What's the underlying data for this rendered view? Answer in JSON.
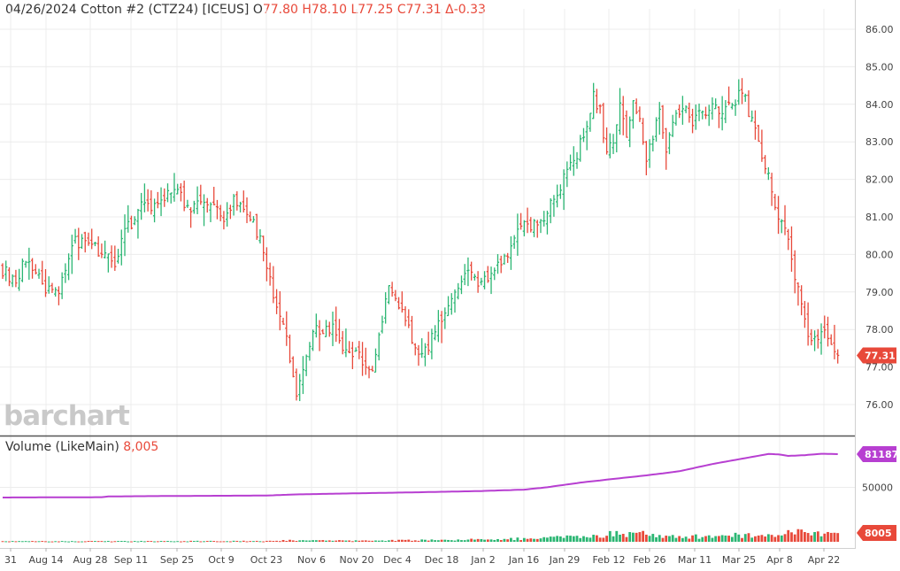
{
  "header": {
    "date": "04/26/2024",
    "symbol": "Cotton #2 (CTZ24) [ICEUS]",
    "o_label": "O",
    "open": "77.80",
    "high": "H78.10",
    "low": "L77.25",
    "close": "C77.31",
    "change": "Δ-0.33"
  },
  "logo_text": "barchart",
  "volume_header": {
    "label": "Volume  (LikeMain)",
    "value": "8,005"
  },
  "colors": {
    "up": "#2bb673",
    "down": "#e8493a",
    "open_interest": "#b73fd1",
    "price_badge": "#e8493a",
    "oi_badge": "#b73fd1",
    "volume_badge": "#e8493a"
  },
  "chart_data": [
    {
      "type": "ohlc",
      "name": "price",
      "y_axis_ticks": [
        "86.00",
        "85.00",
        "84.00",
        "83.00",
        "82.00",
        "81.00",
        "80.00",
        "79.00",
        "78.00",
        "77.00",
        "76.00"
      ],
      "ylim": [
        75.2,
        86.6
      ],
      "last_price_label": "77.31",
      "last_price": 77.31,
      "x_tick_labels": [
        "31",
        "Aug 14",
        "Aug 28",
        "Sep 11",
        "Sep 25",
        "Oct 9",
        "Oct 23",
        "Nov 6",
        "Nov 20",
        "Dec 4",
        "Dec 18",
        "Jan 2",
        "Jan 16",
        "Jan 29",
        "Feb 12",
        "Feb 26",
        "Mar 11",
        "Mar 25",
        "Apr 8",
        "Apr 22"
      ],
      "anchors": [
        [
          0,
          79.6
        ],
        [
          4,
          79.3
        ],
        [
          7,
          79.9
        ],
        [
          10,
          79.5
        ],
        [
          13,
          79.1
        ],
        [
          16,
          78.9
        ],
        [
          19,
          79.6
        ],
        [
          22,
          80.3
        ],
        [
          25,
          80.4
        ],
        [
          28,
          80.2
        ],
        [
          31,
          80.0
        ],
        [
          34,
          79.8
        ],
        [
          37,
          80.7
        ],
        [
          40,
          80.9
        ],
        [
          43,
          81.4
        ],
        [
          46,
          81.3
        ],
        [
          49,
          81.5
        ],
        [
          52,
          81.7
        ],
        [
          55,
          81.4
        ],
        [
          58,
          81.2
        ],
        [
          61,
          81.4
        ],
        [
          64,
          81.2
        ],
        [
          67,
          81.0
        ],
        [
          70,
          81.5
        ],
        [
          73,
          81.1
        ],
        [
          76,
          80.9
        ],
        [
          79,
          80.1
        ],
        [
          82,
          78.9
        ],
        [
          85,
          78.3
        ],
        [
          87,
          77.3
        ],
        [
          89,
          76.4
        ],
        [
          91,
          77.1
        ],
        [
          94,
          78.0
        ],
        [
          97,
          77.9
        ],
        [
          100,
          78.1
        ],
        [
          103,
          77.6
        ],
        [
          106,
          77.4
        ],
        [
          109,
          77.2
        ],
        [
          112,
          77.0
        ],
        [
          115,
          78.3
        ],
        [
          117,
          79.0
        ],
        [
          120,
          78.6
        ],
        [
          123,
          78.0
        ],
        [
          126,
          77.3
        ],
        [
          129,
          77.6
        ],
        [
          132,
          78.1
        ],
        [
          135,
          78.6
        ],
        [
          138,
          79.2
        ],
        [
          141,
          79.5
        ],
        [
          144,
          79.3
        ],
        [
          147,
          79.4
        ],
        [
          150,
          79.7
        ],
        [
          153,
          80.0
        ],
        [
          156,
          80.6
        ],
        [
          159,
          80.8
        ],
        [
          162,
          80.7
        ],
        [
          165,
          81.2
        ],
        [
          168,
          81.6
        ],
        [
          171,
          82.2
        ],
        [
          174,
          82.7
        ],
        [
          177,
          83.4
        ],
        [
          179,
          84.2
        ],
        [
          181,
          83.8
        ],
        [
          183,
          82.7
        ],
        [
          185,
          83.0
        ],
        [
          187,
          84.1
        ],
        [
          189,
          83.1
        ],
        [
          191,
          84.0
        ],
        [
          193,
          83.5
        ],
        [
          195,
          82.6
        ],
        [
          197,
          83.2
        ],
        [
          199,
          83.7
        ],
        [
          201,
          82.9
        ],
        [
          203,
          83.5
        ],
        [
          206,
          83.9
        ],
        [
          209,
          83.5
        ],
        [
          212,
          83.8
        ],
        [
          215,
          84.0
        ],
        [
          217,
          83.7
        ],
        [
          219,
          84.1
        ],
        [
          221,
          83.9
        ],
        [
          223,
          84.4
        ],
        [
          225,
          84.1
        ],
        [
          227,
          83.6
        ],
        [
          229,
          83.0
        ],
        [
          231,
          82.4
        ],
        [
          233,
          81.7
        ],
        [
          235,
          80.9
        ],
        [
          237,
          80.6
        ],
        [
          239,
          79.9
        ],
        [
          241,
          79.0
        ],
        [
          243,
          78.2
        ],
        [
          245,
          77.6
        ],
        [
          247,
          77.9
        ],
        [
          249,
          77.9
        ],
        [
          251,
          77.6
        ],
        [
          253,
          77.31
        ]
      ]
    },
    {
      "type": "bar",
      "name": "volume",
      "y_axis_ticks": [
        "50000"
      ],
      "volume_label": "8005",
      "last_volume": 8005,
      "anchors": [
        [
          0,
          500
        ],
        [
          80,
          700
        ],
        [
          88,
          1400
        ],
        [
          105,
          1000
        ],
        [
          130,
          1600
        ],
        [
          150,
          2300
        ],
        [
          160,
          3000
        ],
        [
          170,
          4200
        ],
        [
          180,
          5600
        ],
        [
          185,
          7200
        ],
        [
          190,
          6400
        ],
        [
          195,
          7800
        ],
        [
          200,
          5400
        ],
        [
          210,
          4700
        ],
        [
          220,
          5500
        ],
        [
          230,
          6800
        ],
        [
          235,
          7800
        ],
        [
          240,
          9000
        ],
        [
          243,
          8000
        ],
        [
          248,
          7200
        ],
        [
          253,
          8005
        ]
      ]
    },
    {
      "type": "line",
      "name": "open interest",
      "oi_label": "81187",
      "last_open_interest": 81187,
      "anchors": [
        [
          0,
          41000
        ],
        [
          30,
          41300
        ],
        [
          32,
          42000
        ],
        [
          50,
          42400
        ],
        [
          80,
          42800
        ],
        [
          88,
          43800
        ],
        [
          100,
          44500
        ],
        [
          125,
          45800
        ],
        [
          145,
          47000
        ],
        [
          158,
          48300
        ],
        [
          165,
          50500
        ],
        [
          175,
          54800
        ],
        [
          185,
          58200
        ],
        [
          195,
          61500
        ],
        [
          205,
          65300
        ],
        [
          215,
          72000
        ],
        [
          225,
          77500
        ],
        [
          232,
          81300
        ],
        [
          235,
          81000
        ],
        [
          238,
          79500
        ],
        [
          243,
          80200
        ],
        [
          248,
          81500
        ],
        [
          253,
          81187
        ]
      ]
    }
  ]
}
